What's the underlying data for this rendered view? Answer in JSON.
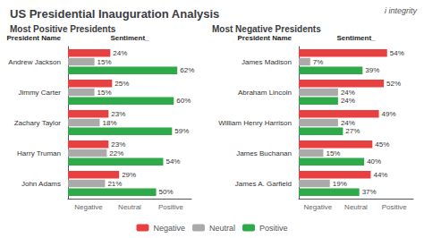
{
  "title": "US Presidential Inauguration Analysis",
  "annotations": [
    "i integrity"
  ],
  "legend": "bottom",
  "chart_data": [
    {
      "type": "bar",
      "orientation": "horizontal",
      "title": "Most Positive Presidents",
      "ylabel": "President Name",
      "xlabel": "Sentiment_",
      "categories": [
        "Andrew Jackson",
        "Jimmy Carter",
        "Zachary Taylor",
        "Harry Truman",
        "John Adams"
      ],
      "series": [
        {
          "name": "Negative",
          "color": "#e84040",
          "values": [
            24,
            25,
            23,
            23,
            29
          ],
          "value_labels": [
            "24%",
            "25%",
            "23%",
            "23%",
            "29%"
          ]
        },
        {
          "name": "Neutral",
          "color": "#aaaaaa",
          "values": [
            15,
            15,
            18,
            22,
            21
          ],
          "value_labels": [
            "15%",
            "15%",
            "18%",
            "22%",
            "21%"
          ]
        },
        {
          "name": "Positive",
          "color": "#2eaa4a",
          "values": [
            62,
            60,
            59,
            54,
            50
          ],
          "value_labels": [
            "62%",
            "60%",
            "59%",
            "54%",
            "50%"
          ]
        }
      ],
      "xlim": [
        0,
        70
      ],
      "grid": false,
      "tick_labels": "y",
      "data_labels": true,
      "annotations": [
        "Negative",
        "Neutral",
        "Positive"
      ]
    },
    {
      "type": "bar",
      "orientation": "horizontal",
      "title": "Most Negative Presidents",
      "ylabel": "President Name",
      "xlabel": "Sentiment_",
      "categories": [
        "James Madison",
        "Abraham Lincoln",
        "William Henry Harrison",
        "James Buchanan",
        "James A. Garfield"
      ],
      "series": [
        {
          "name": "Negative",
          "color": "#e84040",
          "values": [
            54,
            52,
            49,
            45,
            44
          ],
          "value_labels": [
            "54%",
            "52%",
            "49%",
            "45%",
            "44%"
          ]
        },
        {
          "name": "Neutral",
          "color": "#aaaaaa",
          "values": [
            7,
            24,
            24,
            15,
            19
          ],
          "value_labels": [
            "7%",
            "24%",
            "24%",
            "15%",
            "19%"
          ]
        },
        {
          "name": "Positive",
          "color": "#2eaa4a",
          "values": [
            39,
            24,
            27,
            40,
            37
          ],
          "value_labels": [
            "39%",
            "24%",
            "27%",
            "40%",
            "37%"
          ]
        }
      ],
      "xlim": [
        0,
        70
      ],
      "grid": false,
      "tick_labels": "y",
      "data_labels": true,
      "annotations": [
        "Negative",
        "Neutral",
        "Positive"
      ]
    }
  ]
}
